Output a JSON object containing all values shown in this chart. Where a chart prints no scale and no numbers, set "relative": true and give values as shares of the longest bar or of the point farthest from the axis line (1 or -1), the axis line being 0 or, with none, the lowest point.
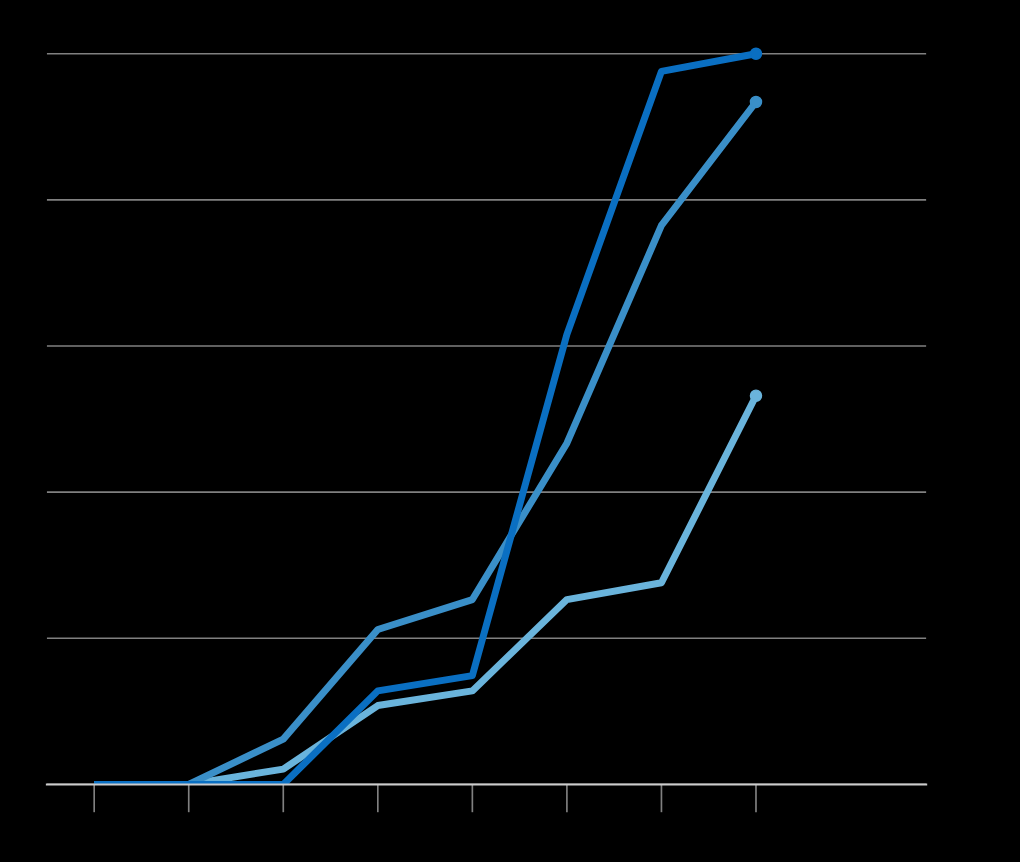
{
  "chart_data": {
    "type": "line",
    "relative": true,
    "categories": [
      null,
      null,
      null,
      null,
      null,
      null,
      null,
      null
    ],
    "series": [
      {
        "color": "#6ab4dc",
        "values": [
          0,
          0,
          0.021,
          0.108,
          0.128,
          0.253,
          0.276,
          0.532
        ]
      },
      {
        "color": "#3a8fc8",
        "values": [
          0,
          0,
          0.062,
          0.212,
          0.253,
          0.467,
          0.765,
          0.934
        ]
      },
      {
        "color": "#0a6fc2",
        "values": [
          0,
          0,
          0,
          0.128,
          0.149,
          0.616,
          0.976,
          1
        ]
      }
    ],
    "grid": "y",
    "line_style": "solid"
  }
}
